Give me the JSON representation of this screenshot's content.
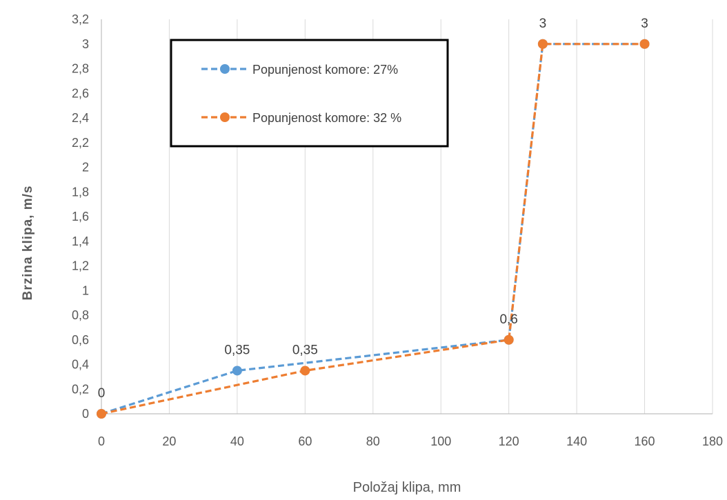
{
  "chart_data": {
    "type": "line",
    "xlabel": "Položaj klipa, mm",
    "ylabel": "Brzina klipa, m/s",
    "xlim": [
      0,
      180
    ],
    "ylim": [
      0,
      3.2
    ],
    "x_ticks": [
      "0",
      "20",
      "40",
      "60",
      "80",
      "100",
      "120",
      "140",
      "160",
      "180"
    ],
    "y_ticks": [
      "0",
      "0,2",
      "0,4",
      "0,6",
      "0,8",
      "1",
      "1,2",
      "1,4",
      "1,6",
      "1,8",
      "2",
      "2,2",
      "2,4",
      "2,6",
      "2,8",
      "3",
      "3,2"
    ],
    "grid": "vertical",
    "legend_position": "top-left-inside",
    "series": [
      {
        "name": "Popunjenost komore: 27%",
        "color": "#5B9BD5",
        "line_style": "dashed",
        "x": [
          0,
          40,
          120,
          130,
          160
        ],
        "y": [
          0,
          0.35,
          0.6,
          3,
          3
        ]
      },
      {
        "name": "Popunjenost komore: 32 %",
        "color": "#ED7D31",
        "line_style": "dashed",
        "x": [
          0,
          60,
          120,
          130,
          160
        ],
        "y": [
          0,
          0.35,
          0.6,
          3,
          3
        ]
      }
    ],
    "data_labels": [
      {
        "x": 0,
        "y": 0,
        "text": "0"
      },
      {
        "x": 40,
        "y": 0.35,
        "text": "0,35"
      },
      {
        "x": 60,
        "y": 0.35,
        "text": "0,35"
      },
      {
        "x": 120,
        "y": 0.6,
        "text": "0,6"
      },
      {
        "x": 130,
        "y": 3,
        "text": "3"
      },
      {
        "x": 160,
        "y": 3,
        "text": "3"
      }
    ]
  }
}
